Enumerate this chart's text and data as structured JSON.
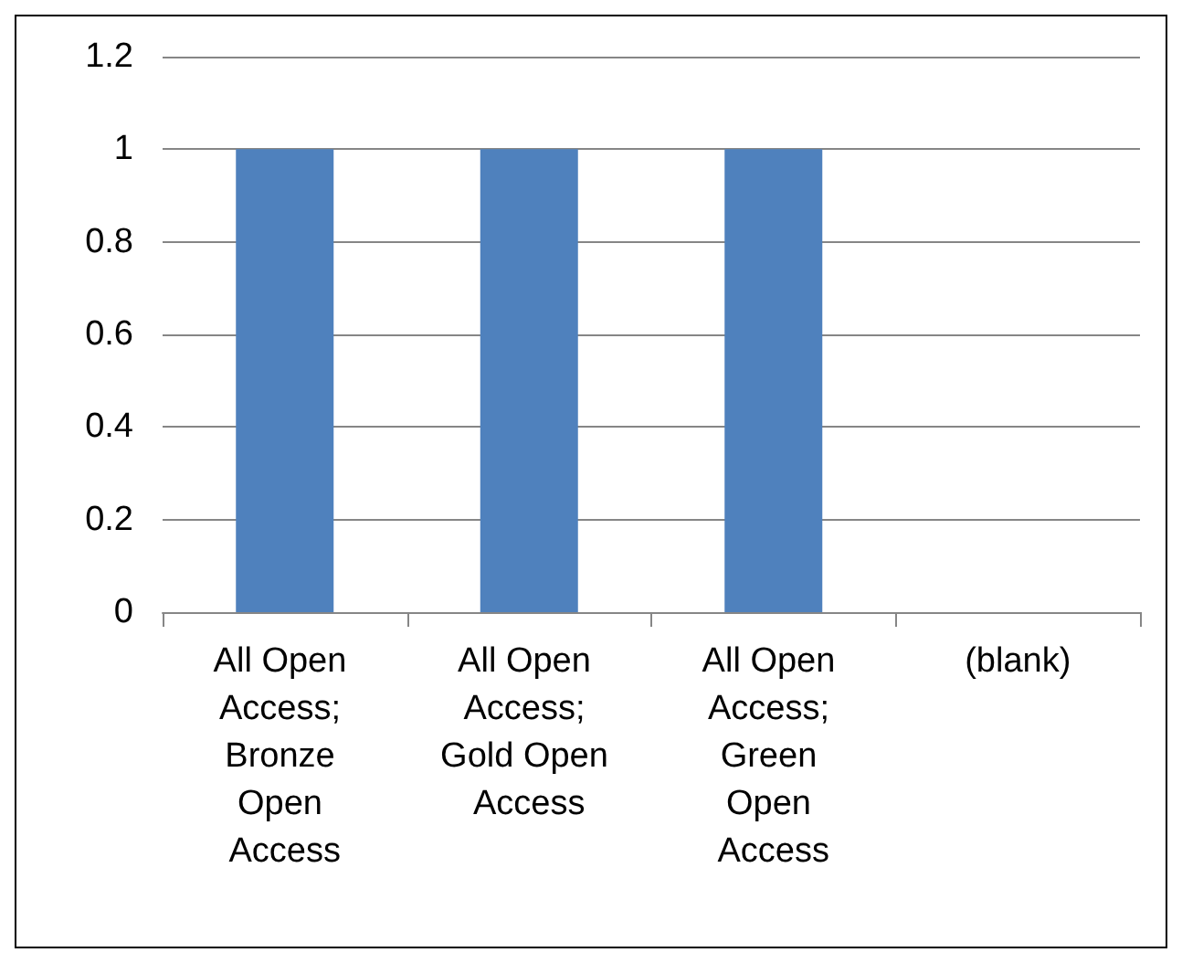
{
  "chart_data": {
    "type": "bar",
    "categories": [
      "All Open Access; Bronze Open Access",
      "All Open Access; Gold Open Access",
      "All Open Access; Green Open Access",
      "(blank)"
    ],
    "values": [
      1,
      1,
      1,
      null
    ],
    "color": "#4f81bd",
    "ylim": [
      0,
      1.2
    ],
    "yticks": [
      0,
      0.2,
      0.4,
      0.6,
      0.8,
      1,
      1.2
    ],
    "grid": "y"
  }
}
